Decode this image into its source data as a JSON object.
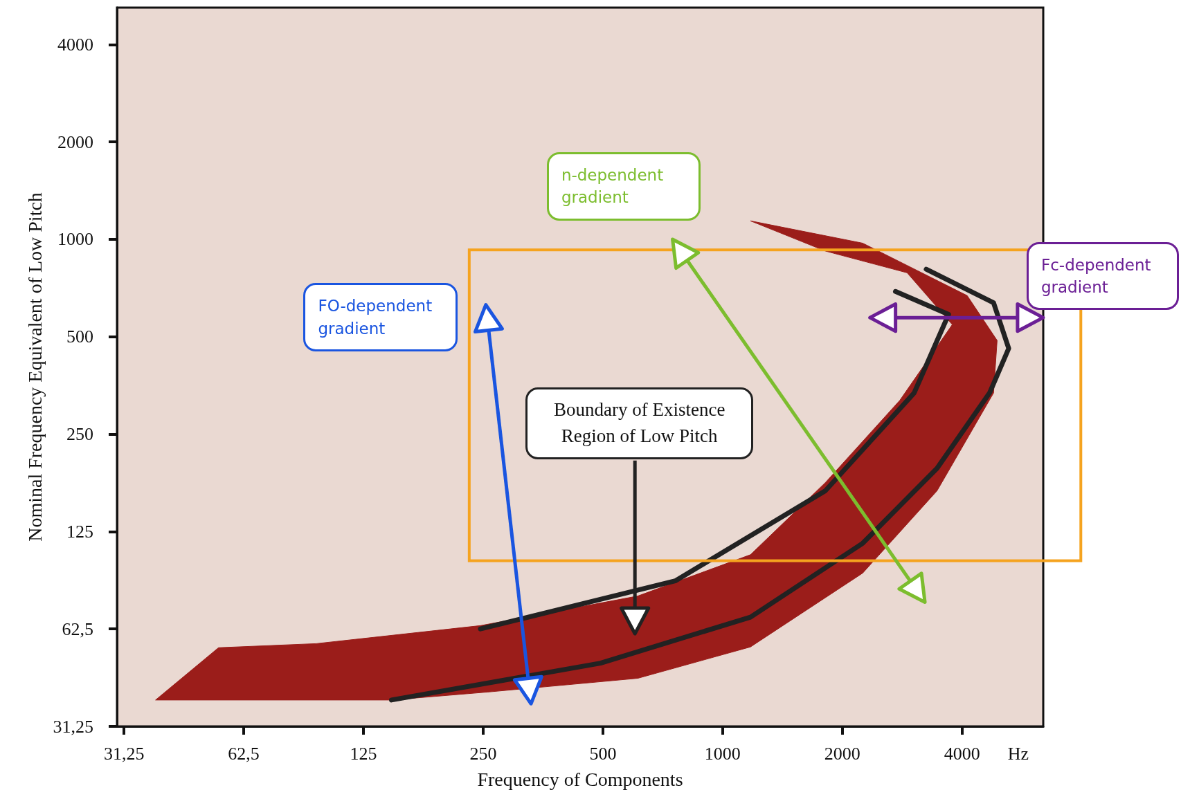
{
  "chart_data": {
    "type": "line",
    "xlabel": "Frequency of Components",
    "ylabel": "Nominal Frequency Equivalent of Low Pitch",
    "log": "xy",
    "marker": "none",
    "line_style": "solid",
    "xlim": [
      30,
      6400
    ],
    "ylim": [
      31.25,
      5200
    ],
    "xticks": [
      {
        "value": 31.25,
        "label": "31,25"
      },
      {
        "value": 62.5,
        "label": "62,5"
      },
      125,
      250,
      500,
      1000,
      2000,
      4000
    ],
    "yticks": [
      {
        "value": 31.25,
        "label": "31,25"
      },
      {
        "value": 62.5,
        "label": "62,5"
      },
      125,
      250,
      500,
      1000,
      2000,
      4000
    ],
    "series": [
      {
        "type": "area",
        "color": "#9b1d1a",
        "x": [
          37.5,
          54,
          95,
          246,
          612,
          1175,
          1812,
          2790,
          3780,
          2910,
          1812,
          1175,
          2250,
          4120,
          4900,
          4800,
          3460,
          2250,
          1175,
          612,
          257,
          147
        ],
        "values": [
          37.7,
          54.7,
          56.3,
          64,
          79,
          106,
          177,
          318,
          545,
          788,
          920,
          1140,
          973,
          670,
          487,
          335,
          167,
          93,
          55,
          44,
          39.9,
          37.7
        ]
      },
      {
        "type": "line",
        "color": "#222222",
        "x": [
          147,
          493,
          1175,
          2250,
          3460,
          4690,
          5240,
          4800,
          3250
        ],
        "values": [
          37.7,
          49,
          68,
          115,
          196,
          335,
          460,
          637,
          808
        ]
      },
      {
        "type": "line",
        "color": "#222222",
        "x": [
          246,
          760,
          1812,
          3030,
          3700,
          2720
        ],
        "values": [
          62.5,
          88,
          167,
          335,
          586,
          690
        ]
      }
    ],
    "annotations": [
      "FO-dependent gradient",
      "n-dependent gradient",
      "Boundary of Existence Region of Low Pitch",
      "Fc-dependent gradient",
      "Hz"
    ]
  }
}
